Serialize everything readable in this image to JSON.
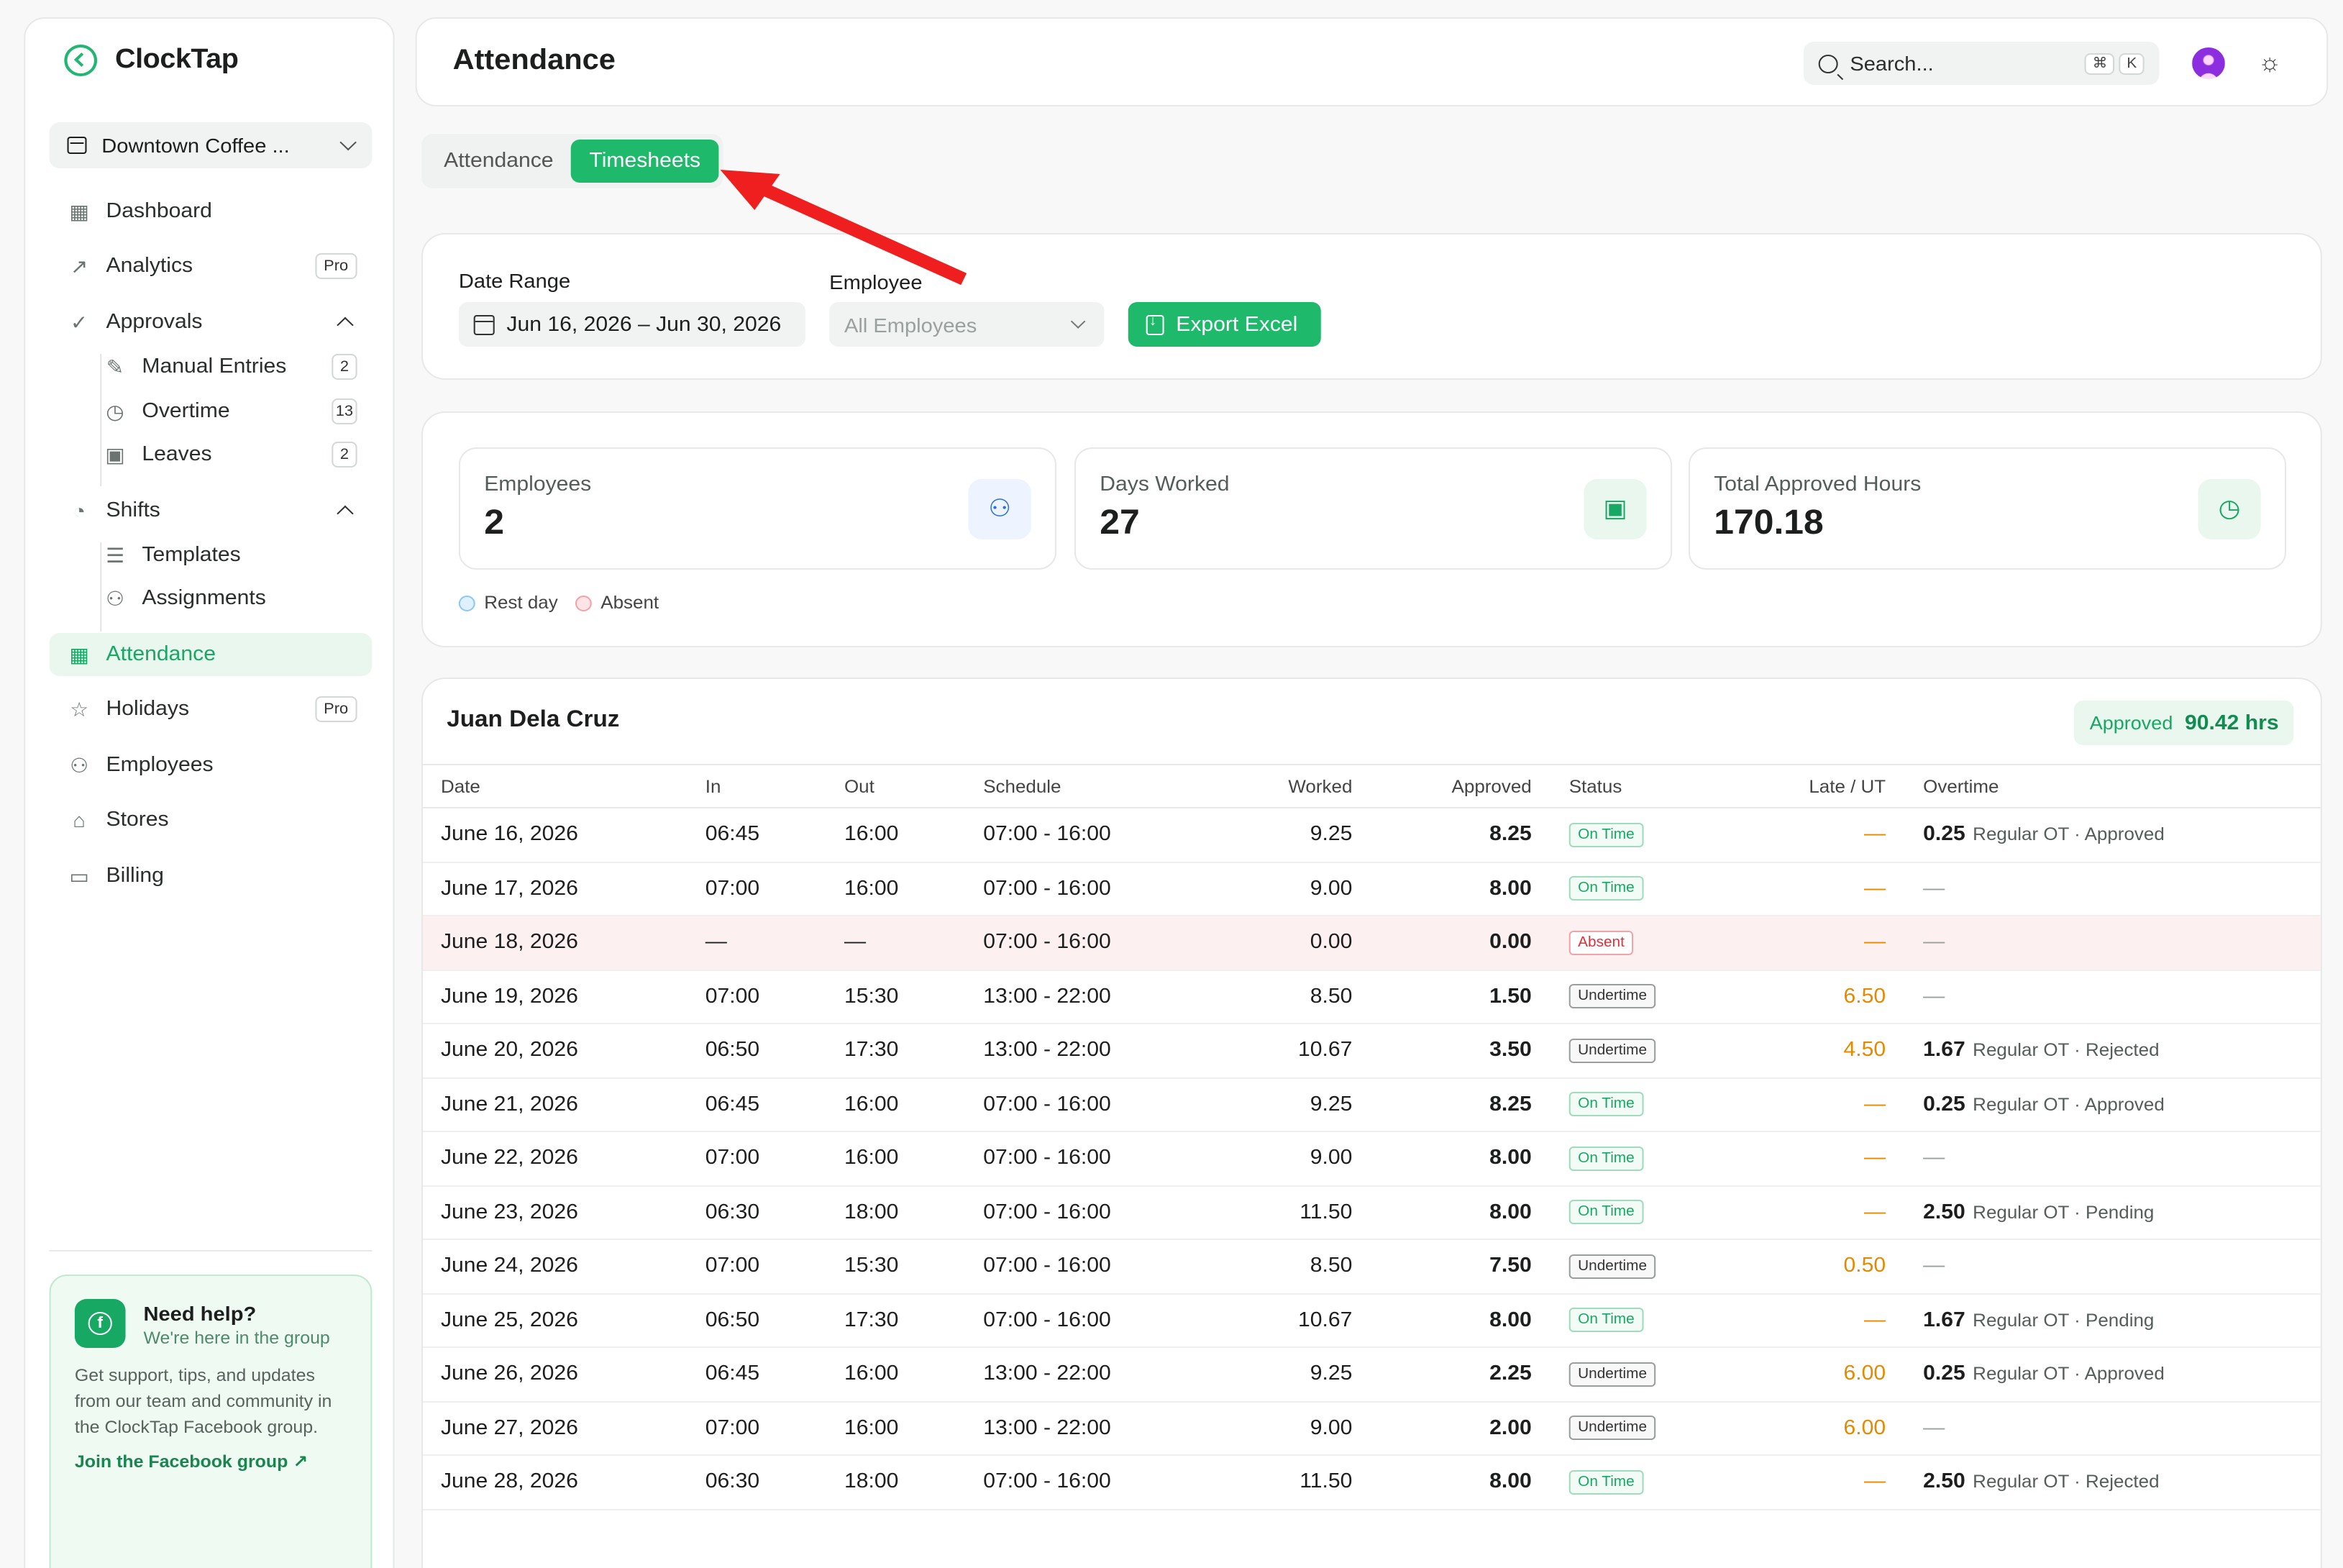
{
  "brand": {
    "name": "ClockTap"
  },
  "store_selector": {
    "value": "Downtown Coffee ..."
  },
  "sidebar": {
    "dashboard": "Dashboard",
    "analytics": "Analytics",
    "analytics_badge": "Pro",
    "approvals": "Approvals",
    "manual_entries": "Manual Entries",
    "manual_entries_count": "2",
    "overtime": "Overtime",
    "overtime_count": "13",
    "leaves": "Leaves",
    "leaves_count": "2",
    "shifts": "Shifts",
    "templates": "Templates",
    "assignments": "Assignments",
    "attendance": "Attendance",
    "holidays": "Holidays",
    "holidays_badge": "Pro",
    "employees": "Employees",
    "stores": "Stores",
    "billing": "Billing"
  },
  "help": {
    "title": "Need help?",
    "subtitle": "We're here in the group",
    "body": "Get support, tips, and updates from our team and community in the ClockTap Facebook group.",
    "link": "Join the Facebook group ↗"
  },
  "header": {
    "title": "Attendance",
    "search_placeholder": "Search...",
    "kbd_cmd": "⌘",
    "kbd_k": "K"
  },
  "tabs": {
    "attendance": "Attendance",
    "timesheets": "Timesheets"
  },
  "filters": {
    "date_range_label": "Date Range",
    "date_range_value": "Jun 16, 2026 – Jun 30, 2026",
    "employee_label": "Employee",
    "employee_placeholder": "All Employees",
    "export_label": "Export Excel"
  },
  "stats": {
    "employees_label": "Employees",
    "employees_value": "2",
    "days_label": "Days Worked",
    "days_value": "27",
    "hours_label": "Total Approved Hours",
    "hours_value": "170.18"
  },
  "legend": {
    "rest_day": "Rest day",
    "absent": "Absent"
  },
  "colors": {
    "accent": "#1fb96b",
    "rest_day": "#bfe3ff",
    "absent": "#ffc9cc"
  },
  "timesheet": {
    "employee_name": "Juan Dela Cruz",
    "approved_label": "Approved",
    "approved_value": "90.42 hrs",
    "columns": {
      "date": "Date",
      "in": "In",
      "out": "Out",
      "schedule": "Schedule",
      "worked": "Worked",
      "approved": "Approved",
      "status": "Status",
      "late": "Late / UT",
      "overtime": "Overtime"
    },
    "rows": [
      {
        "date": "June 16, 2026",
        "in": "06:45",
        "out": "16:00",
        "schedule": "07:00 - 16:00",
        "worked": "9.25",
        "approved": "8.25",
        "status": "On Time",
        "late": "—",
        "ot": "0.25",
        "ot_note": "Regular OT · Approved"
      },
      {
        "date": "June 17, 2026",
        "in": "07:00",
        "out": "16:00",
        "schedule": "07:00 - 16:00",
        "worked": "9.00",
        "approved": "8.00",
        "status": "On Time",
        "late": "—",
        "ot": "—",
        "ot_note": ""
      },
      {
        "date": "June 18, 2026",
        "in": "—",
        "out": "—",
        "schedule": "07:00 - 16:00",
        "worked": "0.00",
        "approved": "0.00",
        "status": "Absent",
        "late": "—",
        "ot": "—",
        "ot_note": ""
      },
      {
        "date": "June 19, 2026",
        "in": "07:00",
        "out": "15:30",
        "schedule": "13:00 - 22:00",
        "worked": "8.50",
        "approved": "1.50",
        "status": "Undertime",
        "late": "6.50",
        "ot": "—",
        "ot_note": ""
      },
      {
        "date": "June 20, 2026",
        "in": "06:50",
        "out": "17:30",
        "schedule": "13:00 - 22:00",
        "worked": "10.67",
        "approved": "3.50",
        "status": "Undertime",
        "late": "4.50",
        "ot": "1.67",
        "ot_note": "Regular OT · Rejected"
      },
      {
        "date": "June 21, 2026",
        "in": "06:45",
        "out": "16:00",
        "schedule": "07:00 - 16:00",
        "worked": "9.25",
        "approved": "8.25",
        "status": "On Time",
        "late": "—",
        "ot": "0.25",
        "ot_note": "Regular OT · Approved"
      },
      {
        "date": "June 22, 2026",
        "in": "07:00",
        "out": "16:00",
        "schedule": "07:00 - 16:00",
        "worked": "9.00",
        "approved": "8.00",
        "status": "On Time",
        "late": "—",
        "ot": "—",
        "ot_note": ""
      },
      {
        "date": "June 23, 2026",
        "in": "06:30",
        "out": "18:00",
        "schedule": "07:00 - 16:00",
        "worked": "11.50",
        "approved": "8.00",
        "status": "On Time",
        "late": "—",
        "ot": "2.50",
        "ot_note": "Regular OT · Pending"
      },
      {
        "date": "June 24, 2026",
        "in": "07:00",
        "out": "15:30",
        "schedule": "07:00 - 16:00",
        "worked": "8.50",
        "approved": "7.50",
        "status": "Undertime",
        "late": "0.50",
        "ot": "—",
        "ot_note": ""
      },
      {
        "date": "June 25, 2026",
        "in": "06:50",
        "out": "17:30",
        "schedule": "07:00 - 16:00",
        "worked": "10.67",
        "approved": "8.00",
        "status": "On Time",
        "late": "—",
        "ot": "1.67",
        "ot_note": "Regular OT · Pending"
      },
      {
        "date": "June 26, 2026",
        "in": "06:45",
        "out": "16:00",
        "schedule": "13:00 - 22:00",
        "worked": "9.25",
        "approved": "2.25",
        "status": "Undertime",
        "late": "6.00",
        "ot": "0.25",
        "ot_note": "Regular OT · Approved"
      },
      {
        "date": "June 27, 2026",
        "in": "07:00",
        "out": "16:00",
        "schedule": "13:00 - 22:00",
        "worked": "9.00",
        "approved": "2.00",
        "status": "Undertime",
        "late": "6.00",
        "ot": "—",
        "ot_note": ""
      },
      {
        "date": "June 28, 2026",
        "in": "06:30",
        "out": "18:00",
        "schedule": "07:00 - 16:00",
        "worked": "11.50",
        "approved": "8.00",
        "status": "On Time",
        "late": "—",
        "ot": "2.50",
        "ot_note": "Regular OT · Rejected"
      }
    ]
  }
}
